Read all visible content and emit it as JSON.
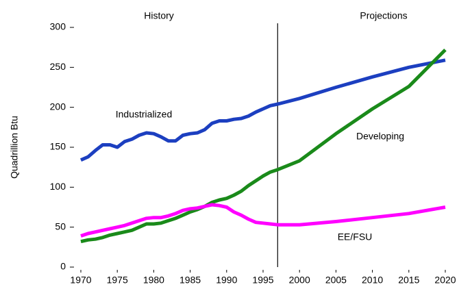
{
  "chart_data": {
    "type": "line",
    "y_label": "Quadrillion Btu",
    "annotations": [
      "History",
      "Projections"
    ],
    "divider_x": 1997,
    "x": [
      1970,
      1971,
      1972,
      1973,
      1974,
      1975,
      1976,
      1977,
      1978,
      1979,
      1980,
      1981,
      1982,
      1983,
      1984,
      1985,
      1986,
      1987,
      1988,
      1989,
      1990,
      1991,
      1992,
      1993,
      1994,
      1995,
      1996,
      1997,
      2000,
      2005,
      2010,
      2015,
      2020
    ],
    "series": [
      {
        "name": "Industrialized",
        "color": "#1c3fc0",
        "values": [
          134,
          138,
          146,
          153,
          153,
          150,
          157,
          160,
          165,
          168,
          167,
          163,
          158,
          158,
          165,
          167,
          168,
          172,
          180,
          183,
          183,
          185,
          186,
          189,
          194,
          198,
          202,
          204,
          211,
          225,
          238,
          250,
          259
        ]
      },
      {
        "name": "Developing",
        "color": "#1a8a1a",
        "values": [
          32,
          34,
          35,
          37,
          40,
          42,
          44,
          46,
          50,
          54,
          54,
          55,
          58,
          61,
          65,
          69,
          72,
          76,
          81,
          84,
          86,
          90,
          95,
          102,
          108,
          114,
          119,
          122,
          133,
          167,
          198,
          226,
          272
        ]
      },
      {
        "name": "EE/FSU",
        "color": "#ff00ff",
        "values": [
          39,
          42,
          44,
          46,
          48,
          50,
          52,
          55,
          58,
          61,
          62,
          62,
          64,
          67,
          71,
          73,
          74,
          76,
          78,
          77,
          75,
          69,
          65,
          60,
          56,
          55,
          54,
          53,
          53,
          57,
          62,
          67,
          75
        ]
      }
    ],
    "xlim": [
      1970,
      2020
    ],
    "ylim": [
      0,
      300
    ],
    "xticks": [
      1970,
      1975,
      1980,
      1985,
      1990,
      1995,
      2000,
      2005,
      2010,
      2015,
      2020
    ],
    "yticks": [
      0,
      50,
      100,
      150,
      200,
      250,
      300
    ],
    "grid": false
  }
}
